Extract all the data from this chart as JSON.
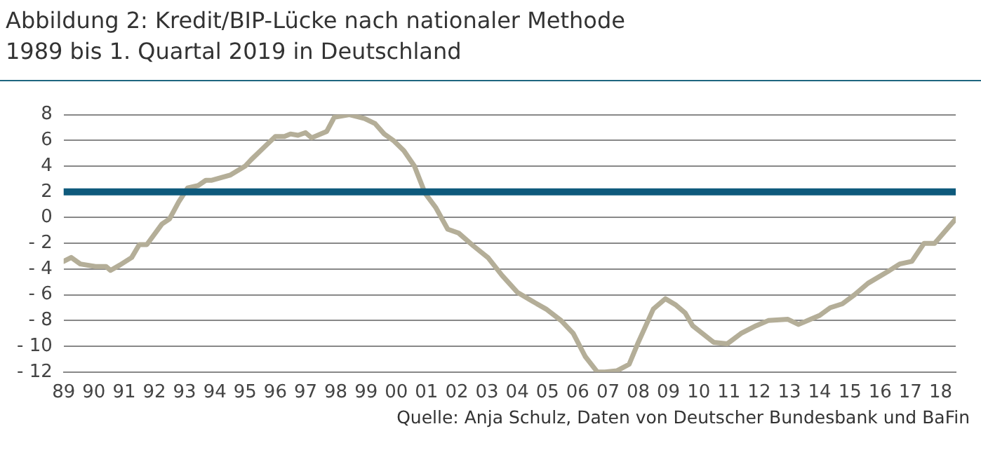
{
  "chart_data": {
    "type": "line",
    "title": "Abbildung 2: Kredit/BIP-Lücke nach nationaler Methode",
    "subtitle": "1989 bis 1. Quartal 2019 in Deutschland",
    "x": [
      1989,
      1989.25,
      1989.55,
      1990.05,
      1990.4,
      1990.55,
      1990.85,
      1991.25,
      1991.5,
      1991.75,
      1992.25,
      1992.5,
      1992.8,
      1993.1,
      1993.45,
      1993.7,
      1993.9,
      1994.5,
      1995,
      1995.2,
      1995.6,
      1996,
      1996.3,
      1996.5,
      1996.75,
      1997,
      1997.2,
      1997.7,
      1997.95,
      1998.45,
      1998.95,
      1999.3,
      1999.6,
      1999.9,
      2000.25,
      2000.6,
      2000.95,
      2001.3,
      2001.7,
      2002.06,
      2002.55,
      2003.03,
      2003.5,
      2004,
      2004.5,
      2004.95,
      2005.45,
      2005.85,
      2006.25,
      2006.65,
      2006.9,
      2007.3,
      2007.7,
      2008,
      2008.5,
      2008.9,
      2009.25,
      2009.55,
      2009.8,
      2010.5,
      2010.95,
      2011.4,
      2011.9,
      2012.3,
      2012.95,
      2013.3,
      2013.7,
      2014,
      2014.35,
      2014.75,
      2015.15,
      2015.6,
      2016.25,
      2016.65,
      2017.05,
      2017.45,
      2017.8,
      2018.5
    ],
    "series": [
      {
        "color": "#b4ae98",
        "values": [
          -3.4,
          -3.1,
          -3.6,
          -3.8,
          -3.8,
          -4.1,
          -3.7,
          -3.1,
          -2.1,
          -2.1,
          -0.5,
          -0.1,
          1.2,
          2.3,
          2.5,
          2.9,
          2.9,
          3.3,
          4,
          4.5,
          5.4,
          6.3,
          6.3,
          6.5,
          6.4,
          6.6,
          6.2,
          6.7,
          7.8,
          8,
          7.7,
          7.3,
          6.5,
          6,
          5.2,
          4,
          1.9,
          0.8,
          -0.9,
          -1.2,
          -2.2,
          -3.1,
          -4.5,
          -5.8,
          -6.5,
          -7.1,
          -8,
          -9,
          -10.8,
          -12,
          -12,
          -11.9,
          -11.4,
          -9.7,
          -7.1,
          -6.3,
          -6.8,
          -7.4,
          -8.4,
          -9.7,
          -9.8,
          -9,
          -8.4,
          -8,
          -7.9,
          -8.3,
          -7.9,
          -7.6,
          -7,
          -6.7,
          -6,
          -5.1,
          -4.2,
          -3.6,
          -3.4,
          -2,
          -2,
          -0.1
        ]
      }
    ],
    "xlim": [
      1989,
      2018.5
    ],
    "xticks": [
      {
        "value": 1989,
        "label": "89"
      },
      {
        "value": 1990,
        "label": "90"
      },
      {
        "value": 1991,
        "label": "91"
      },
      {
        "value": 1992,
        "label": "92"
      },
      {
        "value": 1993,
        "label": "93"
      },
      {
        "value": 1994,
        "label": "94"
      },
      {
        "value": 1995,
        "label": "95"
      },
      {
        "value": 1996,
        "label": "96"
      },
      {
        "value": 1997,
        "label": "97"
      },
      {
        "value": 1998,
        "label": "98"
      },
      {
        "value": 1999,
        "label": "99"
      },
      {
        "value": 2000,
        "label": "00"
      },
      {
        "value": 2001,
        "label": "01"
      },
      {
        "value": 2002,
        "label": "02"
      },
      {
        "value": 2003,
        "label": "03"
      },
      {
        "value": 2004,
        "label": "04"
      },
      {
        "value": 2005,
        "label": "05"
      },
      {
        "value": 2006,
        "label": "06"
      },
      {
        "value": 2007,
        "label": "07"
      },
      {
        "value": 2008,
        "label": "08"
      },
      {
        "value": 2009,
        "label": "09"
      },
      {
        "value": 2010,
        "label": "10"
      },
      {
        "value": 2011,
        "label": "11"
      },
      {
        "value": 2012,
        "label": "12"
      },
      {
        "value": 2013,
        "label": "13"
      },
      {
        "value": 2014,
        "label": "14"
      },
      {
        "value": 2015,
        "label": "15"
      },
      {
        "value": 2016,
        "label": "16"
      },
      {
        "value": 2017,
        "label": "17"
      },
      {
        "value": 2018,
        "label": "18"
      }
    ],
    "ylim": [
      -12,
      8
    ],
    "yticks": [
      {
        "value": -12,
        "label": "- 12"
      },
      {
        "value": -10,
        "label": "- 10"
      },
      {
        "value": -8,
        "label": "- 8"
      },
      {
        "value": -6,
        "label": "- 6"
      },
      {
        "value": -4,
        "label": "- 4"
      },
      {
        "value": -2,
        "label": "- 2"
      },
      0,
      2,
      4,
      6,
      8
    ],
    "grid": "y",
    "marker": "none",
    "line_style": "solid",
    "ref_lines": [
      {
        "axis": "y",
        "value": 2,
        "color": "#0e5a7c"
      }
    ],
    "annotations": [
      "Quelle: Anja Schulz, Daten von Deutscher Bundesbank und BaFin"
    ]
  }
}
